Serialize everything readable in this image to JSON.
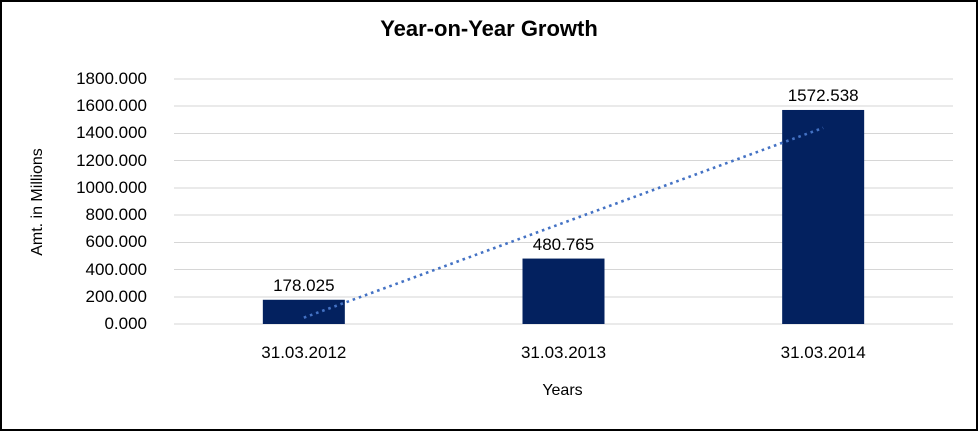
{
  "chart_data": {
    "type": "bar",
    "title": "Year-on-Year Growth",
    "xlabel": "Years",
    "ylabel": "Amt. in Millions",
    "categories": [
      "31.03.2012",
      "31.03.2013",
      "31.03.2014"
    ],
    "values": [
      178.025,
      480.765,
      1572.538
    ],
    "data_labels": [
      "178.025",
      "480.765",
      "1572.538"
    ],
    "ylim": [
      0,
      1800
    ],
    "ytick_step": 200,
    "ytick_labels": [
      "0.000",
      "200.000",
      "400.000",
      "600.000",
      "800.000",
      "1000.000",
      "1200.000",
      "1400.000",
      "1600.000",
      "1800.000"
    ],
    "grid": true,
    "legend": "none",
    "colors": {
      "bar": "#03215F",
      "gridline": "#D6D6D6",
      "trendline": "#4472C4",
      "text": "#000000"
    },
    "trendline": {
      "type": "linear",
      "style": "dotted",
      "color": "#4472C4",
      "start_value": 46.5,
      "end_value": 1441.0
    }
  }
}
